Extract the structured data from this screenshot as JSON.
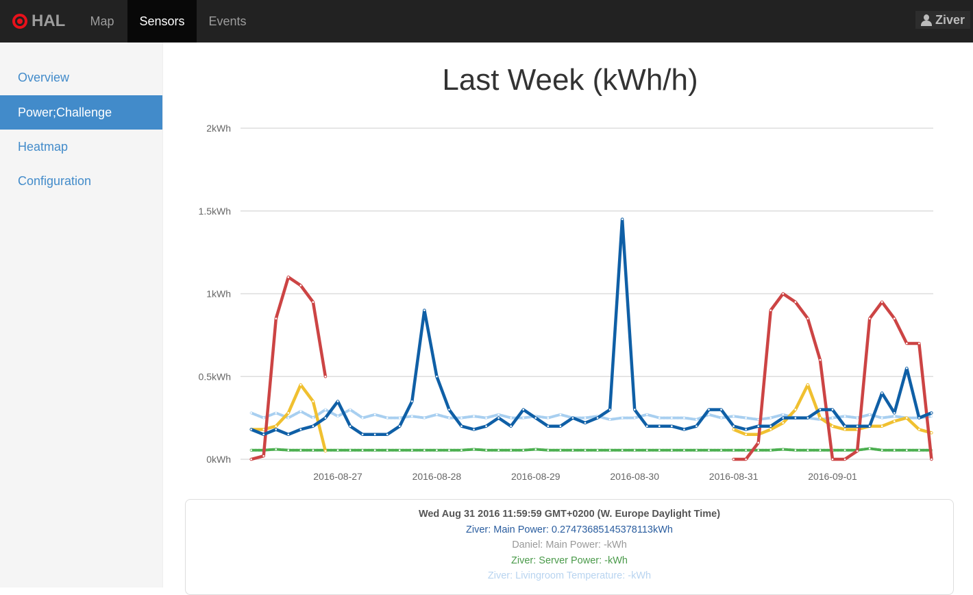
{
  "navbar": {
    "brand": "HAL",
    "items": [
      {
        "label": "Map"
      },
      {
        "label": "Sensors",
        "active": true
      },
      {
        "label": "Events"
      }
    ],
    "user": "Ziver"
  },
  "sidebar": {
    "items": [
      {
        "label": "Overview"
      },
      {
        "label": "Power;Challenge",
        "active": true
      },
      {
        "label": "Heatmap"
      },
      {
        "label": "Configuration"
      }
    ]
  },
  "colors": {
    "navbar": "#222222",
    "accent": "#428bca",
    "blue": "#0f5fa6",
    "red": "#cc4444",
    "yellow": "#f0c030",
    "green": "#4caf50",
    "lightblue": "#a8cff0"
  },
  "chart_data": {
    "type": "line",
    "title": "Last Week (kWh/h)",
    "ylim": [
      0,
      2
    ],
    "yticks": [
      {
        "v": 0,
        "label": "0kWh"
      },
      {
        "v": 0.5,
        "label": "0.5kWh"
      },
      {
        "v": 1,
        "label": "1kWh"
      },
      {
        "v": 1.5,
        "label": "1.5kWh"
      },
      {
        "v": 2,
        "label": "2kWh"
      }
    ],
    "xticks": [
      "2016-08-27",
      "2016-08-28",
      "2016-08-29",
      "2016-08-30",
      "2016-08-31",
      "2016-09-01"
    ],
    "grid": true,
    "x": [
      "2016-08-26 03:00",
      "2016-08-26 06:00",
      "2016-08-26 09:00",
      "2016-08-26 12:00",
      "2016-08-26 15:00",
      "2016-08-26 18:00",
      "2016-08-26 21:00",
      "2016-08-27 00:00",
      "2016-08-27 03:00",
      "2016-08-27 06:00",
      "2016-08-27 09:00",
      "2016-08-27 12:00",
      "2016-08-27 15:00",
      "2016-08-27 18:00",
      "2016-08-27 21:00",
      "2016-08-28 00:00",
      "2016-08-28 03:00",
      "2016-08-28 06:00",
      "2016-08-28 09:00",
      "2016-08-28 12:00",
      "2016-08-28 15:00",
      "2016-08-28 18:00",
      "2016-08-28 21:00",
      "2016-08-29 00:00",
      "2016-08-29 03:00",
      "2016-08-29 06:00",
      "2016-08-29 09:00",
      "2016-08-29 12:00",
      "2016-08-29 15:00",
      "2016-08-29 18:00",
      "2016-08-29 21:00",
      "2016-08-30 00:00",
      "2016-08-30 03:00",
      "2016-08-30 06:00",
      "2016-08-30 09:00",
      "2016-08-30 12:00",
      "2016-08-30 15:00",
      "2016-08-30 18:00",
      "2016-08-30 21:00",
      "2016-08-31 00:00",
      "2016-08-31 03:00",
      "2016-08-31 06:00",
      "2016-08-31 09:00",
      "2016-08-31 12:00",
      "2016-08-31 15:00",
      "2016-08-31 18:00",
      "2016-08-31 21:00",
      "2016-09-01 00:00",
      "2016-09-01 03:00",
      "2016-09-01 06:00",
      "2016-09-01 09:00",
      "2016-09-01 12:00",
      "2016-09-01 15:00",
      "2016-09-01 18:00",
      "2016-09-01 21:00",
      "2016-09-02 00:00"
    ],
    "series": [
      {
        "color": "#a8cff0",
        "style": "dotted",
        "values": [
          0.28,
          0.25,
          0.28,
          0.25,
          0.29,
          0.25,
          0.3,
          0.26,
          0.3,
          0.25,
          0.27,
          0.25,
          0.25,
          0.26,
          0.25,
          0.27,
          0.25,
          0.25,
          0.26,
          0.25,
          0.27,
          0.25,
          0.25,
          0.26,
          0.25,
          0.27,
          0.25,
          0.25,
          0.26,
          0.24,
          0.25,
          0.25,
          0.27,
          0.25,
          0.25,
          0.25,
          0.24,
          0.27,
          0.25,
          0.26,
          0.25,
          0.24,
          0.25,
          0.27,
          0.25,
          0.25,
          0.24,
          0.25,
          0.26,
          0.25,
          0.27,
          0.25,
          0.26,
          0.25,
          0.25,
          0.26
        ]
      },
      {
        "name": "Ziver: Server Power",
        "color": "#4caf50",
        "style": "dotted",
        "values": [
          0.055,
          0.055,
          0.06,
          0.055,
          0.055,
          0.055,
          0.055,
          0.055,
          0.055,
          0.055,
          0.055,
          0.055,
          0.055,
          0.055,
          0.055,
          0.055,
          0.055,
          0.055,
          0.06,
          0.055,
          0.055,
          0.055,
          0.055,
          0.06,
          0.055,
          0.055,
          0.055,
          0.055,
          0.055,
          0.055,
          0.055,
          0.055,
          0.055,
          0.055,
          0.055,
          0.055,
          0.055,
          0.055,
          0.055,
          0.055,
          0.055,
          0.055,
          0.055,
          0.06,
          0.055,
          0.055,
          0.055,
          0.055,
          0.055,
          0.055,
          0.065,
          0.055,
          0.055,
          0.055,
          0.055,
          0.055
        ]
      },
      {
        "color": "#f0c030",
        "style": "solid",
        "values": [
          0.18,
          0.18,
          0.2,
          0.28,
          0.45,
          0.35,
          0.05,
          null,
          null,
          null,
          null,
          null,
          null,
          null,
          null,
          null,
          null,
          null,
          null,
          null,
          null,
          null,
          null,
          null,
          null,
          null,
          null,
          null,
          null,
          null,
          null,
          null,
          null,
          null,
          null,
          null,
          null,
          null,
          null,
          0.18,
          0.15,
          0.15,
          0.18,
          0.22,
          0.3,
          0.45,
          0.25,
          0.2,
          0.18,
          0.18,
          0.2,
          0.2,
          0.23,
          0.25,
          0.18,
          0.16
        ]
      },
      {
        "color": "#cc4444",
        "style": "solid",
        "values": [
          0,
          0.02,
          0.85,
          1.1,
          1.05,
          0.95,
          0.5,
          null,
          null,
          null,
          null,
          null,
          null,
          null,
          null,
          null,
          null,
          null,
          null,
          null,
          null,
          null,
          null,
          null,
          null,
          null,
          null,
          null,
          null,
          null,
          null,
          null,
          null,
          null,
          null,
          null,
          null,
          null,
          null,
          0,
          0,
          0.1,
          0.9,
          1.0,
          0.95,
          0.85,
          0.6,
          0,
          0,
          0.05,
          0.85,
          0.95,
          0.85,
          0.7,
          0.7,
          0
        ]
      },
      {
        "name": "Ziver: Main Power",
        "color": "#0f5fa6",
        "style": "solid",
        "values": [
          0.18,
          0.15,
          0.18,
          0.15,
          0.18,
          0.2,
          0.25,
          0.35,
          0.2,
          0.15,
          0.15,
          0.15,
          0.2,
          0.35,
          0.9,
          0.5,
          0.3,
          0.2,
          0.18,
          0.2,
          0.25,
          0.2,
          0.3,
          0.25,
          0.2,
          0.2,
          0.25,
          0.22,
          0.25,
          0.3,
          1.45,
          0.3,
          0.2,
          0.2,
          0.2,
          0.18,
          0.2,
          0.3,
          0.3,
          0.2,
          0.18,
          0.2,
          0.2,
          0.25,
          0.25,
          0.25,
          0.3,
          0.3,
          0.2,
          0.2,
          0.2,
          0.4,
          0.28,
          0.55,
          0.25,
          0.28
        ]
      }
    ]
  },
  "tooltip": {
    "time": "Wed Aug 31 2016 11:59:59 GMT+0200 (W. Europe Daylight Time)",
    "entries": [
      {
        "text": "Ziver: Main Power: 0.27473685145378113kWh",
        "color": "#2a5d9f"
      },
      {
        "text": "Daniel: Main Power: -kWh",
        "color": "#999999"
      },
      {
        "text": "Ziver: Server Power: -kWh",
        "color": "#4a9a4a"
      },
      {
        "text": "Ziver: Livingroom Temperature: -kWh",
        "color": "#b8d4f0"
      }
    ]
  }
}
